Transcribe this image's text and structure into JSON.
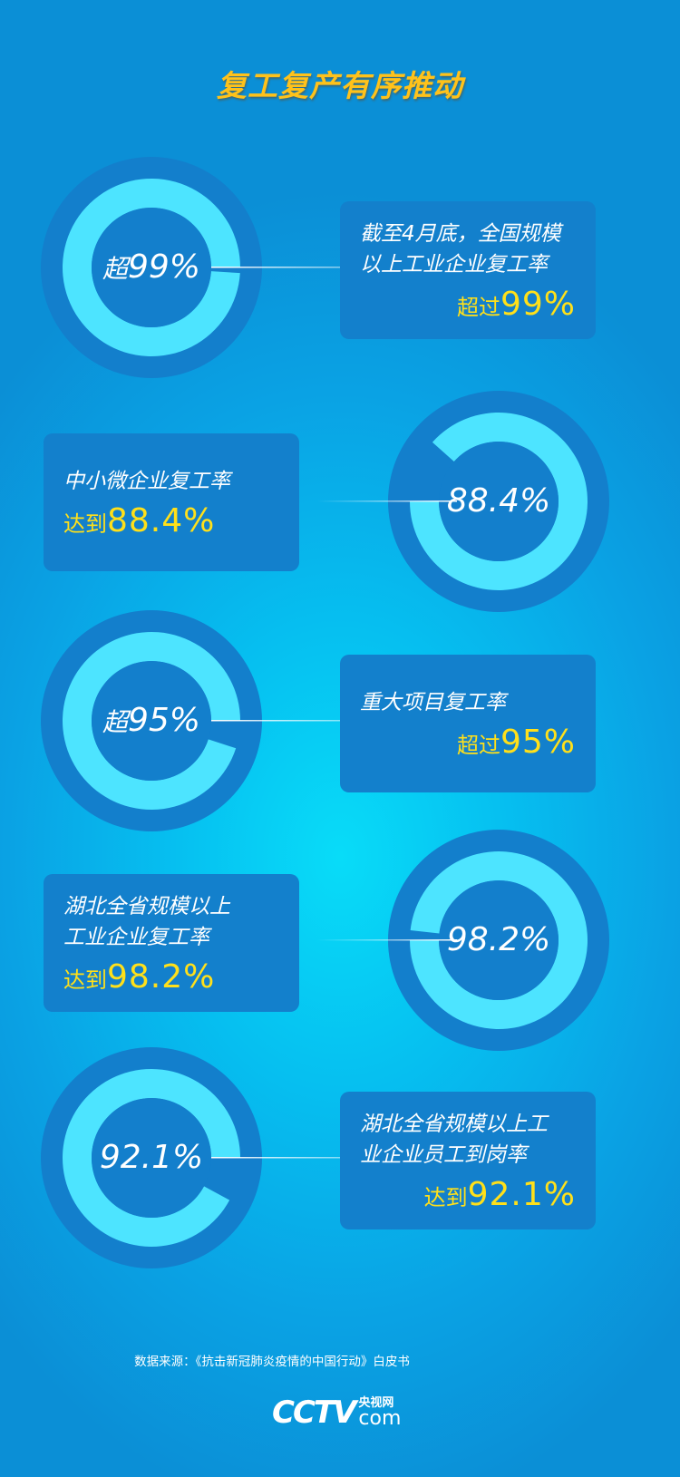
{
  "title": "复工复产有序推动",
  "colors": {
    "ring_outer": "#137fcc",
    "ring_fill": "#4de4ff",
    "ring_inner": "#137fcc",
    "box": "#1380cc",
    "highlight": "#ffe01a",
    "title": "#ffc21a"
  },
  "items": [
    {
      "percent": 99,
      "center_prefix": "超",
      "center_value": "99%",
      "lines": [
        "截至4月底，全国规模",
        "以上工业企业复工率"
      ],
      "hl_prefix": "超过",
      "hl_value": "99%"
    },
    {
      "percent": 88.4,
      "center_prefix": "",
      "center_value": "88.4%",
      "lines": [
        "中小微企业复工率"
      ],
      "hl_prefix": "达到",
      "hl_value": "88.4%"
    },
    {
      "percent": 95,
      "center_prefix": "超",
      "center_value": "95%",
      "lines": [
        "重大项目复工率"
      ],
      "hl_prefix": "超过",
      "hl_value": "95%"
    },
    {
      "percent": 98.2,
      "center_prefix": "",
      "center_value": "98.2%",
      "lines": [
        "湖北全省规模以上",
        "工业企业复工率"
      ],
      "hl_prefix": "达到",
      "hl_value": "98.2%"
    },
    {
      "percent": 92.1,
      "center_prefix": "",
      "center_value": "92.1%",
      "lines": [
        "湖北全省规模以上工",
        "业企业员工到岗率"
      ],
      "hl_prefix": "达到",
      "hl_value": "92.1%"
    }
  ],
  "source": "数据来源：《抗击新冠肺炎疫情的中国行动》白皮书",
  "logo": {
    "mark": "CCTV",
    "cn": "央视网",
    "com": "com"
  }
}
